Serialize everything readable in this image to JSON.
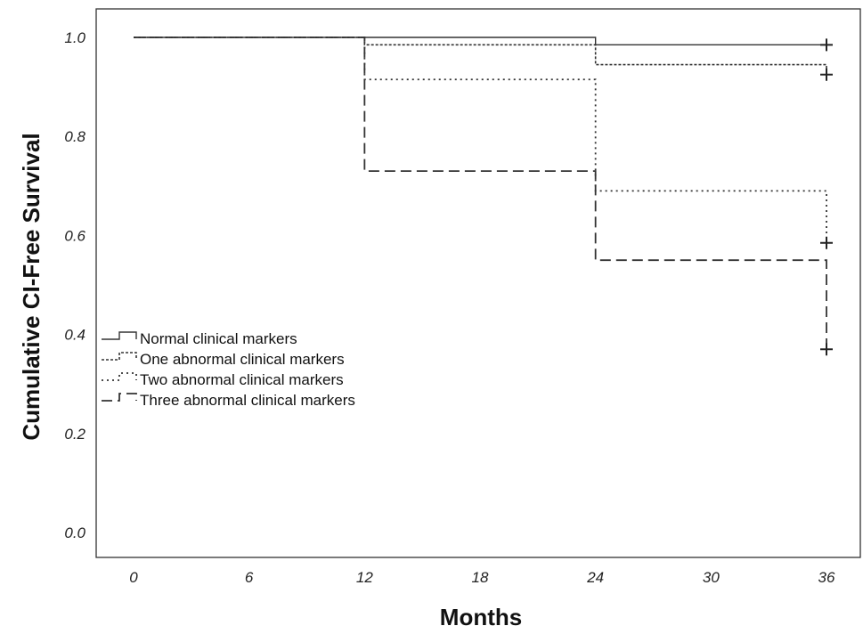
{
  "chart_data": {
    "type": "line",
    "step": true,
    "xlabel": "Months",
    "ylabel": "Cumulative CI-Free Survival",
    "xlim": [
      0,
      36
    ],
    "ylim": [
      0,
      1.0
    ],
    "xticks": [
      0,
      6,
      12,
      18,
      24,
      30,
      36
    ],
    "yticks": [
      "0.0",
      "0.2",
      "0.4",
      "0.6",
      "0.8",
      "1.0"
    ],
    "grid": false,
    "legend_position": "middle-left",
    "series": [
      {
        "name": "Normal clinical markers",
        "style": "solid",
        "x": [
          0,
          24,
          36
        ],
        "y": [
          1.0,
          0.985,
          0.985
        ],
        "censored": [
          {
            "x": 36,
            "y": 0.985
          }
        ]
      },
      {
        "name": "One abnormal clinical markers",
        "style": "dotted",
        "x": [
          0,
          12,
          24,
          36
        ],
        "y": [
          1.0,
          0.985,
          0.945,
          0.925
        ],
        "censored": [
          {
            "x": 36,
            "y": 0.925
          }
        ]
      },
      {
        "name": "Two abnormal clinical markers",
        "style": "dashdot",
        "x": [
          0,
          12,
          24,
          36
        ],
        "y": [
          1.0,
          0.915,
          0.69,
          0.585
        ],
        "censored": [
          {
            "x": 36,
            "y": 0.585
          }
        ]
      },
      {
        "name": "Three abnormal clinical markers",
        "style": "dashed",
        "x": [
          0,
          12,
          24,
          36
        ],
        "y": [
          1.0,
          0.73,
          0.55,
          0.37
        ],
        "censored": [
          {
            "x": 36,
            "y": 0.37
          }
        ]
      }
    ]
  }
}
